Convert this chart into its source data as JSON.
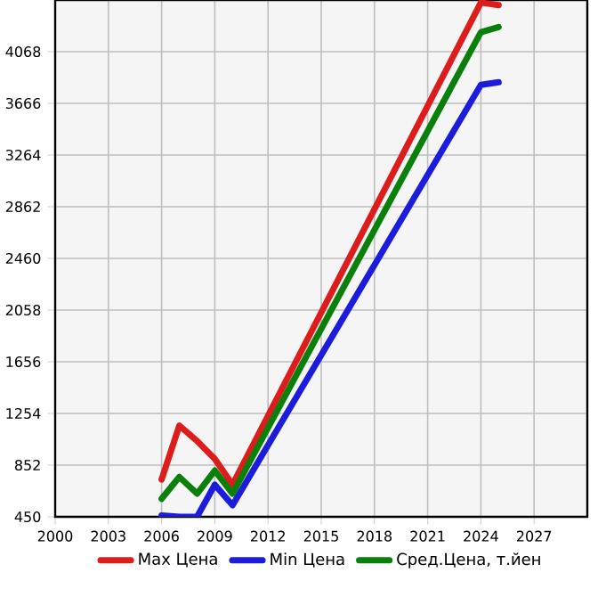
{
  "chart_data": {
    "type": "line",
    "x": [
      2006,
      2007,
      2008,
      2009,
      2010,
      2024,
      2025
    ],
    "series": [
      {
        "name": "Max Цена",
        "color": "#dd1c1c",
        "values": [
          740,
          1160,
          1040,
          900,
          700,
          4450,
          4430
        ]
      },
      {
        "name": "Min Цена",
        "color": "#1c1cdd",
        "values": [
          460,
          450,
          450,
          700,
          540,
          3810,
          3830
        ]
      },
      {
        "name": "Сред.Цена, т.йен",
        "color": "#0a800a",
        "values": [
          590,
          760,
          630,
          810,
          630,
          4220,
          4260
        ]
      }
    ],
    "xlim": [
      2000,
      2030
    ],
    "xticks": [
      2000,
      2003,
      2006,
      2009,
      2012,
      2015,
      2018,
      2021,
      2024,
      2027
    ],
    "ylim": [
      450,
      4470
    ],
    "yticks": [
      450,
      852,
      1254,
      1656,
      2058,
      2460,
      2862,
      3264,
      3666,
      4068
    ],
    "grid": true,
    "legend": "bottom",
    "marker": "none",
    "line_style": "solid"
  }
}
